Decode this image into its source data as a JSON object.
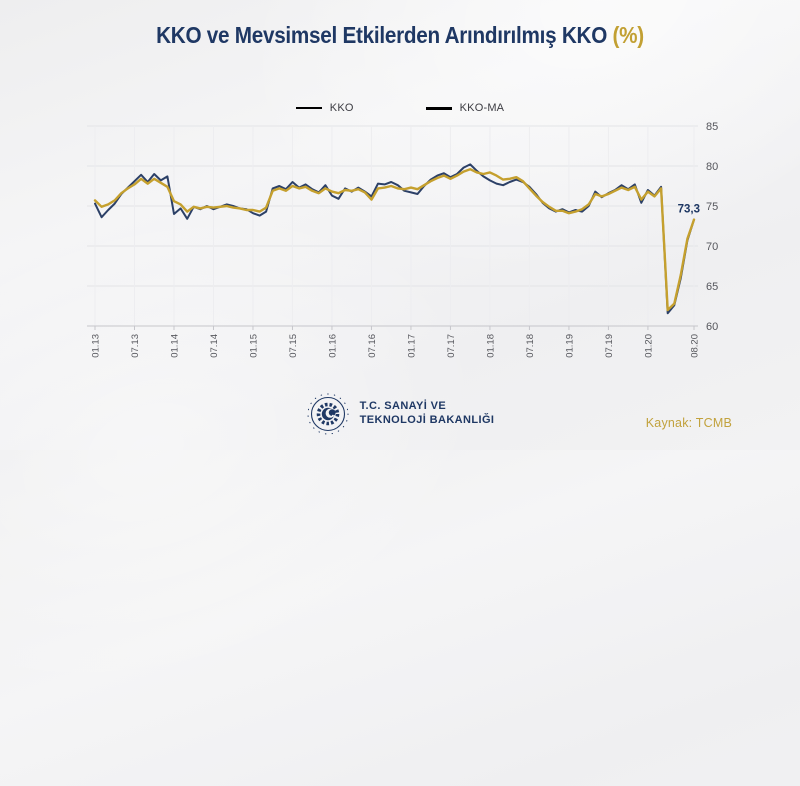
{
  "title": {
    "main": "KKO ve Mevsimsel Etkilerden Arındırılmış KKO",
    "suffix": "(%)"
  },
  "legend": {
    "items": [
      {
        "label": "KKO",
        "color": "#2c4067"
      },
      {
        "label": "KKO-MA",
        "color": "#c5a02e"
      }
    ]
  },
  "chart_data": {
    "type": "line",
    "title": "KKO ve Mevsimsel Etkilerden Arındırılmış KKO (%)",
    "x_start": "01.13",
    "x_end": "08.20",
    "x_tick_labels": [
      "01.13",
      "07.13",
      "01.14",
      "07.14",
      "01.15",
      "07.15",
      "01.16",
      "07.16",
      "01.17",
      "07.17",
      "01.18",
      "07.18",
      "01.19",
      "07.19",
      "01.20",
      "08.20"
    ],
    "x_tick_months": [
      0,
      6,
      12,
      18,
      24,
      30,
      36,
      42,
      48,
      54,
      60,
      66,
      72,
      78,
      84,
      91
    ],
    "y_ticks": [
      60,
      65,
      70,
      75,
      80,
      85
    ],
    "ylim": [
      60,
      85
    ],
    "grid": true,
    "legend_position": "top",
    "series": [
      {
        "name": "KKO",
        "color": "#2c4067",
        "width": 2,
        "values": [
          75.3,
          73.6,
          74.5,
          75.3,
          76.5,
          77.3,
          78.1,
          78.9,
          78.0,
          79.0,
          78.2,
          78.7,
          74.0,
          74.7,
          73.4,
          74.9,
          74.6,
          75.0,
          74.6,
          74.9,
          75.2,
          75.0,
          74.7,
          74.6,
          74.1,
          73.8,
          74.3,
          77.2,
          77.5,
          77.1,
          78.0,
          77.3,
          77.7,
          77.1,
          76.7,
          77.6,
          76.3,
          75.9,
          77.2,
          76.8,
          77.3,
          76.8,
          76.2,
          77.8,
          77.7,
          78.0,
          77.6,
          76.9,
          76.7,
          76.5,
          77.5,
          78.3,
          78.8,
          79.1,
          78.6,
          79.0,
          79.8,
          80.2,
          79.4,
          78.7,
          78.2,
          77.8,
          77.6,
          78.0,
          78.3,
          78.0,
          77.4,
          76.5,
          75.4,
          74.7,
          74.3,
          74.6,
          74.2,
          74.5,
          74.3,
          75.0,
          76.8,
          76.1,
          76.6,
          77.0,
          77.6,
          77.1,
          77.7,
          75.4,
          77.0,
          76.3,
          77.4,
          61.6,
          62.6,
          66.0,
          70.7,
          73.3
        ]
      },
      {
        "name": "KKO-MA",
        "color": "#c5a02e",
        "width": 2.4,
        "values": [
          75.7,
          74.9,
          75.2,
          75.7,
          76.6,
          77.2,
          77.7,
          78.4,
          77.8,
          78.4,
          77.9,
          77.4,
          75.6,
          75.2,
          74.3,
          74.9,
          74.7,
          74.9,
          74.8,
          74.9,
          75.0,
          74.8,
          74.7,
          74.5,
          74.5,
          74.3,
          74.8,
          76.9,
          77.2,
          76.9,
          77.5,
          77.2,
          77.4,
          76.9,
          76.6,
          77.2,
          76.8,
          76.6,
          77.0,
          76.9,
          77.1,
          76.7,
          75.8,
          77.2,
          77.3,
          77.5,
          77.2,
          77.1,
          77.3,
          77.1,
          77.6,
          78.1,
          78.5,
          78.8,
          78.4,
          78.8,
          79.3,
          79.6,
          79.2,
          79.0,
          79.2,
          78.8,
          78.3,
          78.4,
          78.6,
          78.1,
          77.2,
          76.3,
          75.5,
          74.9,
          74.4,
          74.4,
          74.1,
          74.3,
          74.6,
          75.2,
          76.5,
          76.2,
          76.5,
          76.9,
          77.3,
          77.0,
          77.4,
          75.8,
          76.8,
          76.2,
          77.2,
          62.0,
          62.8,
          66.4,
          70.9,
          73.3
        ]
      }
    ],
    "annotation": {
      "text": "73,3",
      "month_index": 91,
      "value": 73.3,
      "series": "KKO"
    }
  },
  "footer": {
    "ministry_line1": "T.C. SANAYİ VE",
    "ministry_line2": "TEKNOLOJİ BAKANLIĞI",
    "source": "Kaynak: TCMB"
  },
  "colors": {
    "navy": "#1f3864",
    "gold": "#c2a033",
    "axis_label": "#55565c",
    "gridline": "#e3e4e7",
    "axis_line": "#c6c6cb"
  }
}
